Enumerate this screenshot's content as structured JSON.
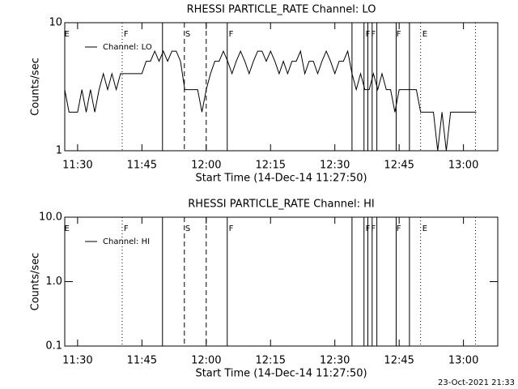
{
  "chart_data": [
    {
      "type": "line",
      "title": "RHESSI PARTICLE_RATE Channel: LO",
      "x_label": "Start Time (14-Dec-14 11:27:50)",
      "y_label": "Counts/sec",
      "log_y": true,
      "xlim": [
        687,
        788
      ],
      "ylim": [
        1,
        10
      ],
      "xticks": [
        {
          "value": 690,
          "label": "11:30"
        },
        {
          "value": 705,
          "label": "11:45"
        },
        {
          "value": 720,
          "label": "12:00"
        },
        {
          "value": 735,
          "label": "12:15"
        },
        {
          "value": 750,
          "label": "12:30"
        },
        {
          "value": 765,
          "label": "12:45"
        },
        {
          "value": 780,
          "label": "13:00"
        }
      ],
      "yticks": [
        1,
        10
      ],
      "legend": "upper-left",
      "x": [
        687,
        688,
        689,
        690,
        691,
        692,
        693,
        694,
        695,
        696,
        697,
        698,
        699,
        700,
        701,
        702,
        703,
        704,
        705,
        706,
        707,
        708,
        709,
        710,
        711,
        712,
        713,
        714,
        715,
        716,
        717,
        718,
        719,
        720,
        721,
        722,
        723,
        724,
        725,
        726,
        727,
        728,
        729,
        730,
        731,
        732,
        733,
        734,
        735,
        736,
        737,
        738,
        739,
        740,
        741,
        742,
        743,
        744,
        745,
        746,
        747,
        748,
        749,
        750,
        751,
        752,
        753,
        754,
        755,
        756,
        757,
        758,
        759,
        760,
        761,
        762,
        763,
        764,
        765,
        766,
        767,
        768,
        769,
        770,
        771,
        772,
        773,
        774,
        775,
        776,
        777,
        778,
        779,
        780,
        781,
        782,
        783
      ],
      "series": [
        {
          "name": "Channel: LO",
          "color": "#000000",
          "values": [
            3,
            2,
            2,
            2,
            3,
            2,
            3,
            2,
            3,
            4,
            3,
            4,
            3,
            4,
            4,
            4,
            4,
            4,
            4,
            5,
            5,
            6,
            5,
            6,
            5,
            6,
            6,
            5,
            3,
            3,
            3,
            3,
            2,
            3,
            4,
            5,
            5,
            6,
            5,
            4,
            5,
            6,
            5,
            4,
            5,
            6,
            6,
            5,
            6,
            5,
            4,
            5,
            4,
            5,
            5,
            6,
            4,
            5,
            5,
            4,
            5,
            6,
            5,
            4,
            5,
            5,
            6,
            4,
            3,
            4,
            3,
            3,
            4,
            3,
            4,
            3,
            3,
            2,
            3,
            3,
            3,
            3,
            3,
            2,
            2,
            2,
            2,
            1,
            2,
            1,
            2,
            2,
            2,
            2,
            2,
            2,
            2
          ]
        }
      ],
      "flags": [
        {
          "x": 687.5,
          "label": "E"
        },
        {
          "x": 701.3,
          "label": "F"
        },
        {
          "x": 715.7,
          "label": "S"
        },
        {
          "x": 725.8,
          "label": "F"
        },
        {
          "x": 757.7,
          "label": "F"
        },
        {
          "x": 759,
          "label": "F"
        },
        {
          "x": 764.9,
          "label": "F"
        },
        {
          "x": 771,
          "label": "E"
        }
      ],
      "vlines": [
        {
          "x": 700.4,
          "style": "dotted"
        },
        {
          "x": 709.8,
          "style": "solid"
        },
        {
          "x": 714.9,
          "style": "dashed"
        },
        {
          "x": 720,
          "style": "dashed"
        },
        {
          "x": 724.9,
          "style": "solid"
        },
        {
          "x": 754,
          "style": "solid"
        },
        {
          "x": 756.8,
          "style": "solid"
        },
        {
          "x": 757.7,
          "style": "solid"
        },
        {
          "x": 758.7,
          "style": "solid"
        },
        {
          "x": 759.8,
          "style": "solid"
        },
        {
          "x": 764.3,
          "style": "solid"
        },
        {
          "x": 767.4,
          "style": "solid"
        },
        {
          "x": 770,
          "style": "dotted"
        },
        {
          "x": 782.8,
          "style": "dotted"
        }
      ]
    },
    {
      "type": "line",
      "title": "RHESSI PARTICLE_RATE Channel: HI",
      "x_label": "Start Time (14-Dec-14 11:27:50)",
      "y_label": "Counts/sec",
      "log_y": true,
      "xlim": [
        687,
        788
      ],
      "ylim": [
        0.1,
        10
      ],
      "xticks": [
        {
          "value": 690,
          "label": "11:30"
        },
        {
          "value": 705,
          "label": "11:45"
        },
        {
          "value": 720,
          "label": "12:00"
        },
        {
          "value": 735,
          "label": "12:15"
        },
        {
          "value": 750,
          "label": "12:30"
        },
        {
          "value": 765,
          "label": "12:45"
        },
        {
          "value": 780,
          "label": "13:00"
        }
      ],
      "yticks": [
        {
          "value": 0.1,
          "label": "0.1"
        },
        {
          "value": 1,
          "label": "1.0"
        },
        {
          "value": 10,
          "label": "10.0"
        }
      ],
      "legend": "upper-left",
      "x": [],
      "series": [
        {
          "name": "Channel: HI",
          "color": "#000000",
          "values": []
        }
      ],
      "flags": [
        {
          "x": 687.5,
          "label": "E"
        },
        {
          "x": 701.3,
          "label": "F"
        },
        {
          "x": 715.7,
          "label": "S"
        },
        {
          "x": 725.8,
          "label": "F"
        },
        {
          "x": 757.7,
          "label": "F"
        },
        {
          "x": 759,
          "label": "F"
        },
        {
          "x": 764.9,
          "label": "F"
        },
        {
          "x": 771,
          "label": "E"
        }
      ],
      "vlines": [
        {
          "x": 700.4,
          "style": "dotted"
        },
        {
          "x": 709.8,
          "style": "solid"
        },
        {
          "x": 714.9,
          "style": "dashed"
        },
        {
          "x": 720,
          "style": "dashed"
        },
        {
          "x": 724.9,
          "style": "solid"
        },
        {
          "x": 754,
          "style": "solid"
        },
        {
          "x": 756.8,
          "style": "solid"
        },
        {
          "x": 757.7,
          "style": "solid"
        },
        {
          "x": 758.7,
          "style": "solid"
        },
        {
          "x": 759.8,
          "style": "solid"
        },
        {
          "x": 764.3,
          "style": "solid"
        },
        {
          "x": 767.4,
          "style": "solid"
        },
        {
          "x": 770,
          "style": "dotted"
        },
        {
          "x": 782.8,
          "style": "dotted"
        }
      ]
    }
  ],
  "footer": "23-Oct-2021 21:33"
}
